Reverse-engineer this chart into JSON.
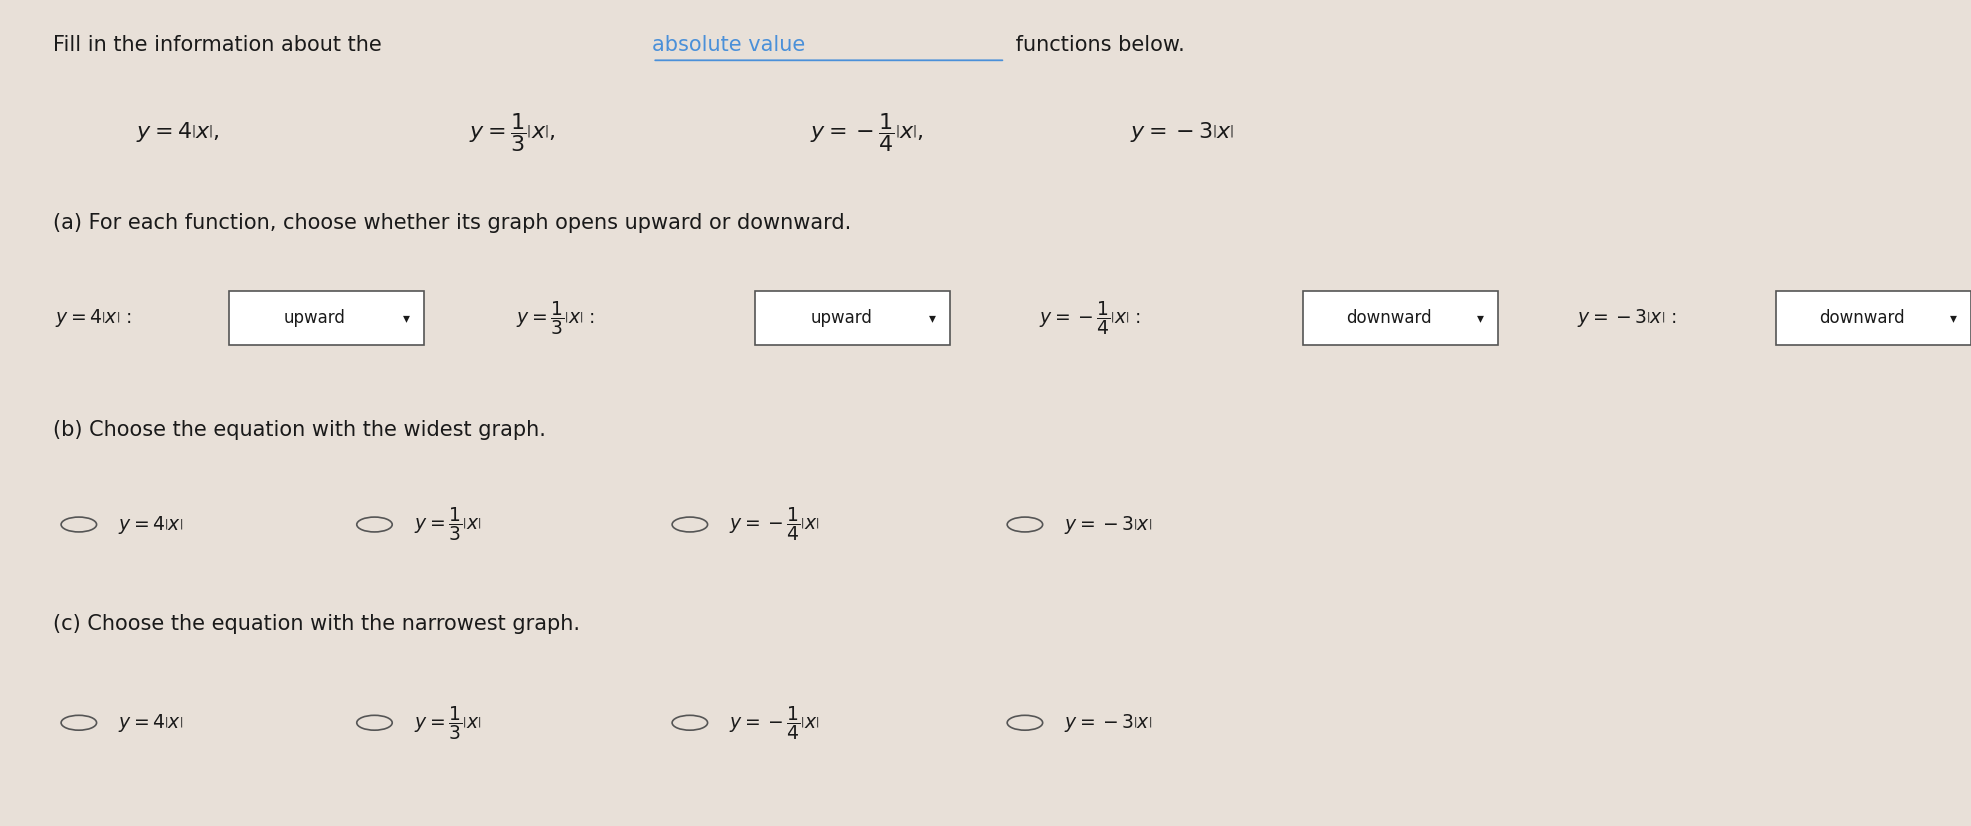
{
  "bg_color": "#e8e0d8",
  "text_color": "#1a1a1a",
  "part_a_label": "(a) For each function, choose whether its graph opens upward or downward.",
  "part_b_label": "(b) Choose the equation with the widest graph.",
  "part_c_label": "(c) Choose the equation with the narrowest graph.",
  "dropdown_box_color": "#ffffff",
  "dropdown_border_color": "#555555",
  "link_color": "#4a90d9",
  "font_size_title": 15,
  "font_size_body": 14
}
